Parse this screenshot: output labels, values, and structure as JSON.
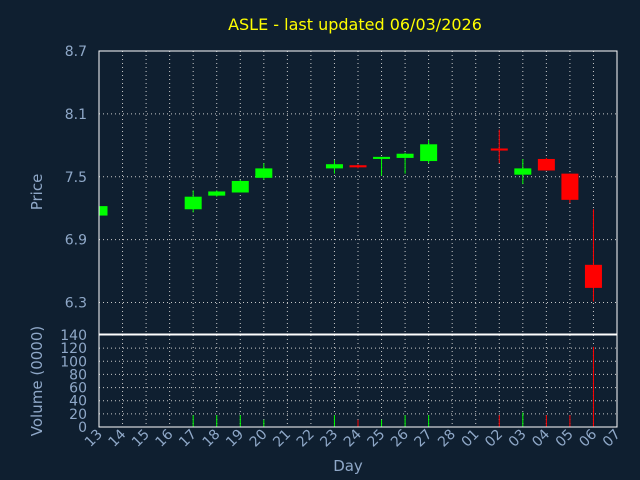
{
  "chart_data": {
    "type": "candlestick",
    "title": "ASLE - last updated 06/03/2026",
    "xlabel": "Day",
    "price_panel": {
      "ylabel": "Price",
      "ylim": [
        6.0,
        8.7
      ],
      "ticks": [
        6.3,
        6.9,
        7.5,
        8.1,
        8.7
      ],
      "tick_labels": [
        "6.3",
        "6.9",
        "7.5",
        "8.1",
        "8.7"
      ],
      "grid": true
    },
    "volume_panel": {
      "ylabel": "Volume (0000)",
      "ylim": [
        0,
        140
      ],
      "ticks": [
        0,
        20,
        40,
        60,
        80,
        100,
        120,
        140
      ],
      "tick_labels": [
        "0",
        "20",
        "40",
        "60",
        "80",
        "100",
        "120",
        "140"
      ],
      "grid": true
    },
    "x_tick_labels": [
      "13",
      "14",
      "15",
      "16",
      "17",
      "18",
      "19",
      "20",
      "21",
      "22",
      "23",
      "24",
      "25",
      "26",
      "27",
      "28",
      "01",
      "02",
      "03",
      "04",
      "05",
      "06",
      "07"
    ],
    "colors": {
      "up": "#00ff00",
      "down": "#ff0000",
      "background": "#0f1f30",
      "grid": "#c8c8c8",
      "text": "#8fa8c8",
      "title": "#ffff00"
    },
    "candles": [
      {
        "day": "13",
        "open": 7.13,
        "high": 7.23,
        "low": 7.13,
        "close": 7.22,
        "volume": 6
      },
      {
        "day": "17",
        "open": 7.19,
        "high": 7.37,
        "low": 7.16,
        "close": 7.31,
        "volume": 18
      },
      {
        "day": "18",
        "open": 7.32,
        "high": 7.37,
        "low": 7.31,
        "close": 7.36,
        "volume": 18
      },
      {
        "day": "19",
        "open": 7.35,
        "high": 7.47,
        "low": 7.35,
        "close": 7.46,
        "volume": 18
      },
      {
        "day": "20",
        "open": 7.49,
        "high": 7.63,
        "low": 7.47,
        "close": 7.58,
        "volume": 11
      },
      {
        "day": "23",
        "open": 7.58,
        "high": 7.66,
        "low": 7.53,
        "close": 7.62,
        "volume": 18
      },
      {
        "day": "24",
        "open": 7.61,
        "high": 7.62,
        "low": 7.58,
        "close": 7.59,
        "volume": 11
      },
      {
        "day": "25",
        "open": 7.67,
        "high": 7.68,
        "low": 7.51,
        "close": 7.69,
        "volume": 11
      },
      {
        "day": "26",
        "open": 7.68,
        "high": 7.73,
        "low": 7.53,
        "close": 7.72,
        "volume": 18
      },
      {
        "day": "27",
        "open": 7.65,
        "high": 7.85,
        "low": 7.63,
        "close": 7.81,
        "volume": 18
      },
      {
        "day": "02",
        "open": 7.77,
        "high": 7.95,
        "low": 7.63,
        "close": 7.75,
        "volume": 18
      },
      {
        "day": "03",
        "open": 7.52,
        "high": 7.67,
        "low": 7.43,
        "close": 7.58,
        "volume": 22
      },
      {
        "day": "04",
        "open": 7.67,
        "high": 7.68,
        "low": 7.56,
        "close": 7.56,
        "volume": 18
      },
      {
        "day": "05",
        "open": 7.53,
        "high": 7.53,
        "low": 7.25,
        "close": 7.28,
        "volume": 18
      },
      {
        "day": "06",
        "open": 6.66,
        "high": 7.19,
        "low": 6.31,
        "close": 6.44,
        "volume": 122
      }
    ]
  }
}
